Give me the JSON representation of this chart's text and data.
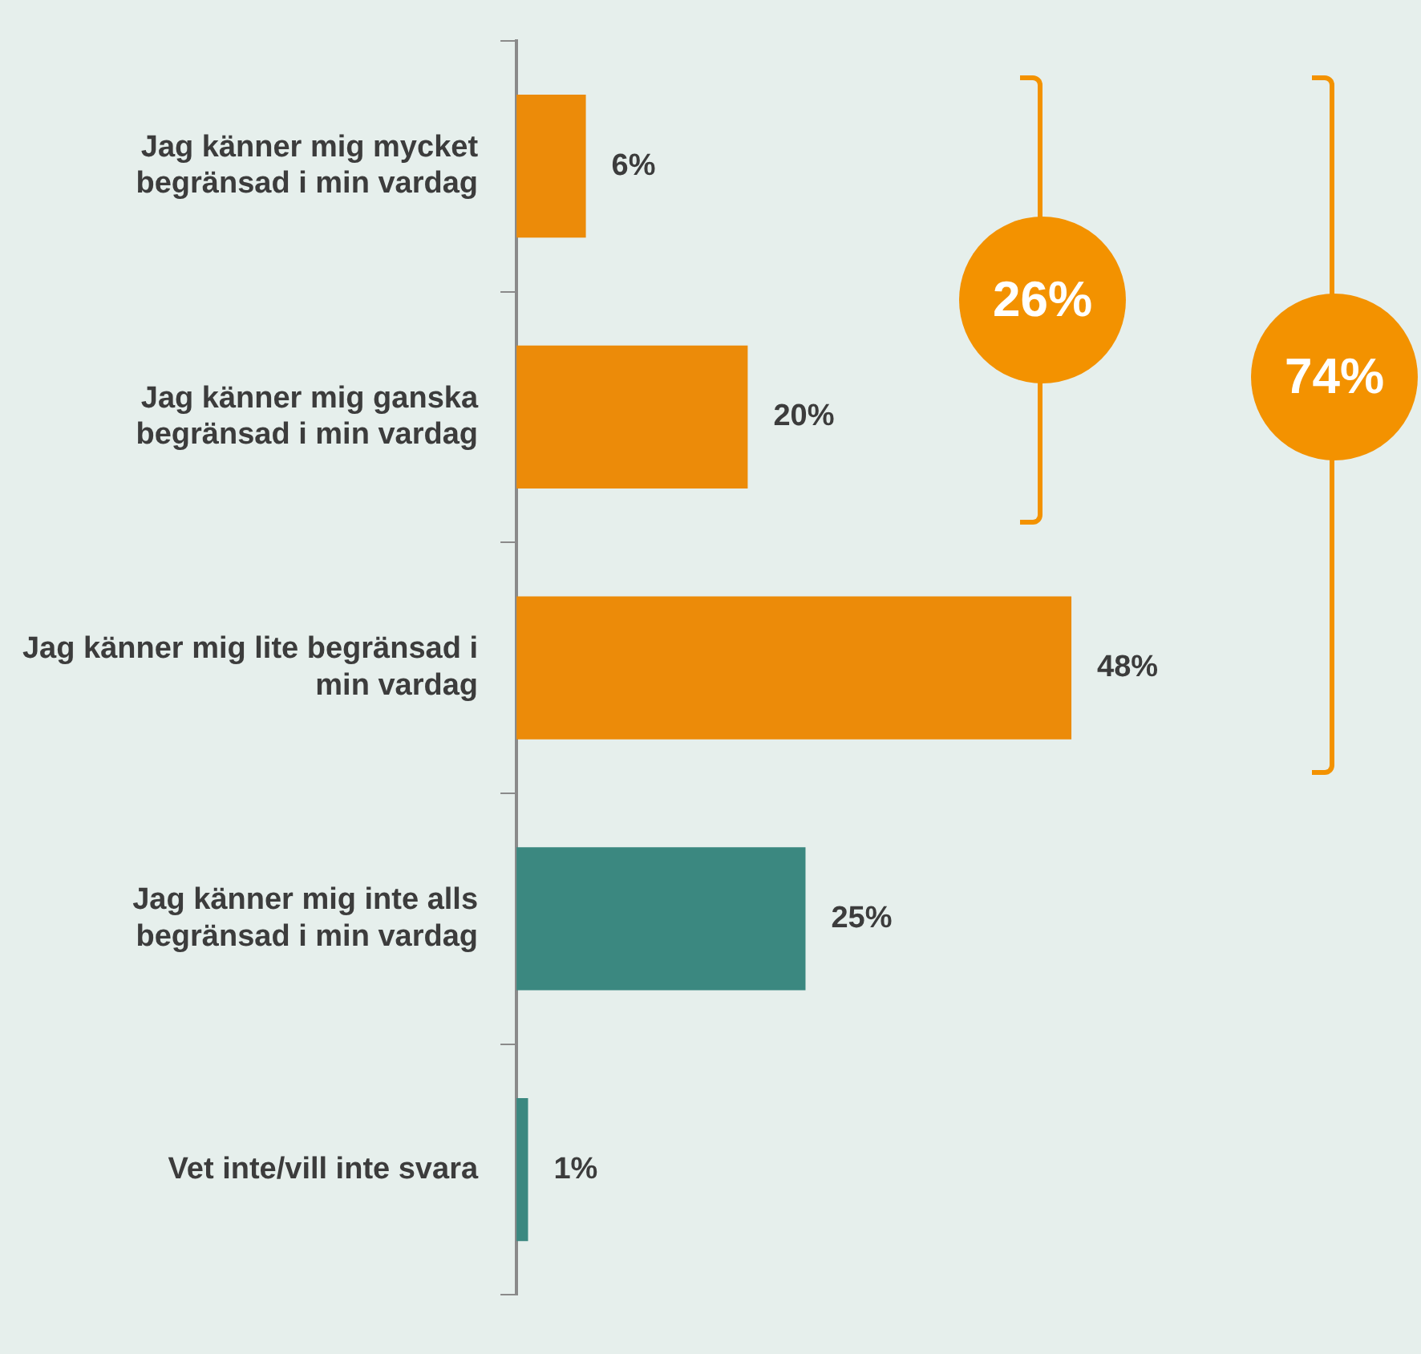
{
  "chart_data": {
    "type": "bar",
    "orientation": "horizontal",
    "categories": [
      "Jag känner mig mycket begränsad i min vardag",
      "Jag känner mig ganska begränsad i min vardag",
      "Jag känner mig lite begränsad i min vardag",
      "Jag känner mig inte alls begränsad i min vardag",
      "Vet inte/vill inte svara"
    ],
    "values": [
      6,
      20,
      48,
      25,
      1
    ],
    "colors": [
      "#ec8b09",
      "#ec8b09",
      "#ec8b09",
      "#3b8880",
      "#3b8880"
    ],
    "value_labels": [
      "6%",
      "20%",
      "48%",
      "25%",
      "1%"
    ],
    "annotations": [
      "26%",
      "74%"
    ],
    "legend": false
  }
}
